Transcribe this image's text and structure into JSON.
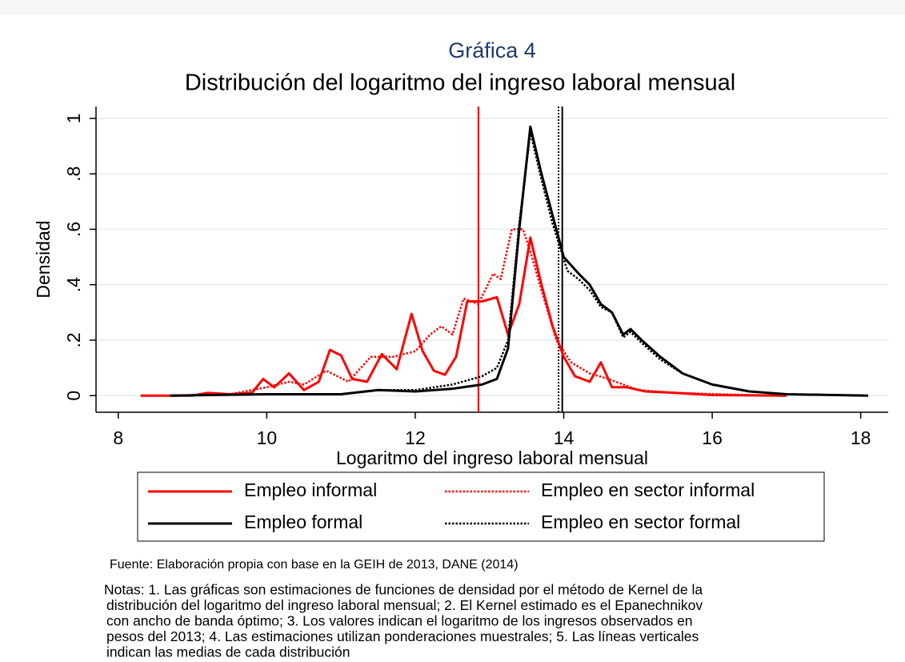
{
  "chart_data": {
    "type": "line",
    "subtitle": "Gráfica 4",
    "title": "Distribución del logaritmo del ingreso laboral mensual",
    "xlabel": "Logaritmo del ingreso laboral mensual",
    "ylabel": "Densidad",
    "xlim": [
      7.7,
      18.37
    ],
    "ylim": [
      -0.06,
      1.043
    ],
    "xticks": [
      8,
      10,
      12,
      14,
      16,
      18
    ],
    "yticks": [
      0,
      {
        "value": 0.2,
        "label": ".2"
      },
      {
        "value": 0.4,
        "label": ".4"
      },
      {
        "value": 0.6,
        "label": ".6"
      },
      {
        "value": 0.8,
        "label": ".8"
      },
      1
    ],
    "grid": true,
    "series": [
      {
        "name": "Empleo informal",
        "color": "#ff0000",
        "dashed": false,
        "x": [
          8.3,
          9.0,
          9.2,
          9.5,
          9.8,
          9.95,
          10.1,
          10.3,
          10.5,
          10.7,
          10.85,
          11.0,
          11.15,
          11.35,
          11.55,
          11.75,
          11.95,
          12.1,
          12.25,
          12.4,
          12.55,
          12.7,
          12.9,
          13.1,
          13.25,
          13.4,
          13.55,
          13.7,
          13.85,
          14.0,
          14.15,
          14.35,
          14.5,
          14.65,
          14.85,
          15.1,
          15.5,
          16.0,
          17.0
        ],
        "values": [
          0,
          0,
          0.01,
          0.005,
          0.01,
          0.06,
          0.03,
          0.08,
          0.02,
          0.05,
          0.165,
          0.145,
          0.06,
          0.05,
          0.15,
          0.095,
          0.295,
          0.16,
          0.09,
          0.075,
          0.14,
          0.34,
          0.34,
          0.355,
          0.22,
          0.33,
          0.57,
          0.4,
          0.25,
          0.14,
          0.07,
          0.05,
          0.12,
          0.03,
          0.03,
          0.015,
          0.01,
          0.002,
          0
        ]
      },
      {
        "name": "Empleo en sector informal",
        "color": "#ff0000",
        "dashed": true,
        "x": [
          8.7,
          9.5,
          10.0,
          10.3,
          10.5,
          10.8,
          11.1,
          11.4,
          11.7,
          12.0,
          12.2,
          12.35,
          12.5,
          12.65,
          12.85,
          13.05,
          13.15,
          13.3,
          13.45,
          13.55,
          13.7,
          13.9,
          14.1,
          14.35,
          14.6,
          15.0,
          15.5,
          16.5,
          17.0
        ],
        "values": [
          0,
          0.005,
          0.03,
          0.05,
          0.04,
          0.09,
          0.05,
          0.14,
          0.14,
          0.16,
          0.22,
          0.25,
          0.22,
          0.35,
          0.33,
          0.44,
          0.42,
          0.6,
          0.6,
          0.52,
          0.38,
          0.2,
          0.12,
          0.08,
          0.06,
          0.02,
          0.01,
          0.002,
          0
        ]
      },
      {
        "name": "Empleo formal",
        "color": "#000000",
        "dashed": false,
        "x": [
          8.7,
          10.0,
          11.0,
          11.5,
          12.0,
          12.5,
          12.9,
          13.1,
          13.25,
          13.4,
          13.55,
          13.7,
          13.85,
          14.0,
          14.2,
          14.35,
          14.5,
          14.65,
          14.8,
          14.9,
          15.05,
          15.3,
          15.6,
          16.0,
          16.5,
          17.0,
          18.1
        ],
        "values": [
          0,
          0.005,
          0.005,
          0.02,
          0.015,
          0.025,
          0.04,
          0.06,
          0.17,
          0.6,
          0.97,
          0.8,
          0.65,
          0.5,
          0.44,
          0.4,
          0.33,
          0.3,
          0.22,
          0.24,
          0.2,
          0.14,
          0.08,
          0.04,
          0.015,
          0.005,
          0
        ]
      },
      {
        "name": "Empleo en sector formal",
        "color": "#000000",
        "dashed": true,
        "x": [
          8.7,
          10.0,
          11.0,
          11.5,
          12.0,
          12.5,
          12.9,
          13.1,
          13.25,
          13.4,
          13.55,
          13.7,
          13.85,
          14.05,
          14.2,
          14.35,
          14.5,
          14.65,
          14.8,
          14.9,
          15.05,
          15.3,
          15.6,
          16.0,
          16.5,
          17.0,
          18.1
        ],
        "values": [
          0,
          0.005,
          0.005,
          0.02,
          0.02,
          0.04,
          0.07,
          0.1,
          0.2,
          0.62,
          0.95,
          0.78,
          0.62,
          0.45,
          0.42,
          0.38,
          0.32,
          0.3,
          0.21,
          0.23,
          0.19,
          0.13,
          0.08,
          0.04,
          0.015,
          0.005,
          0
        ]
      }
    ],
    "mean_lines": [
      {
        "x": 12.85,
        "color": "#ff0000",
        "dashed": false
      },
      {
        "x": 13.93,
        "color": "#000000",
        "dashed": true
      },
      {
        "x": 13.98,
        "color": "#000000",
        "dashed": false
      }
    ],
    "source": "Fuente: Elaboración propia con base en la GEIH de 2013, DANE (2014)",
    "notes": [
      "Notas: 1. Las gráficas son estimaciones de funciones de densidad por el método de Kernel de la",
      "distribución del logaritmo del ingreso laboral mensual; 2. El Kernel estimado es el Epanechnikov",
      "con ancho de banda óptimo; 3. Los valores indican el logaritmo de los ingresos observados en",
      "pesos del 2013; 4. Las estimaciones utilizan ponderaciones muestrales; 5. Las líneas verticales",
      "indican las medias de cada distribución"
    ]
  }
}
